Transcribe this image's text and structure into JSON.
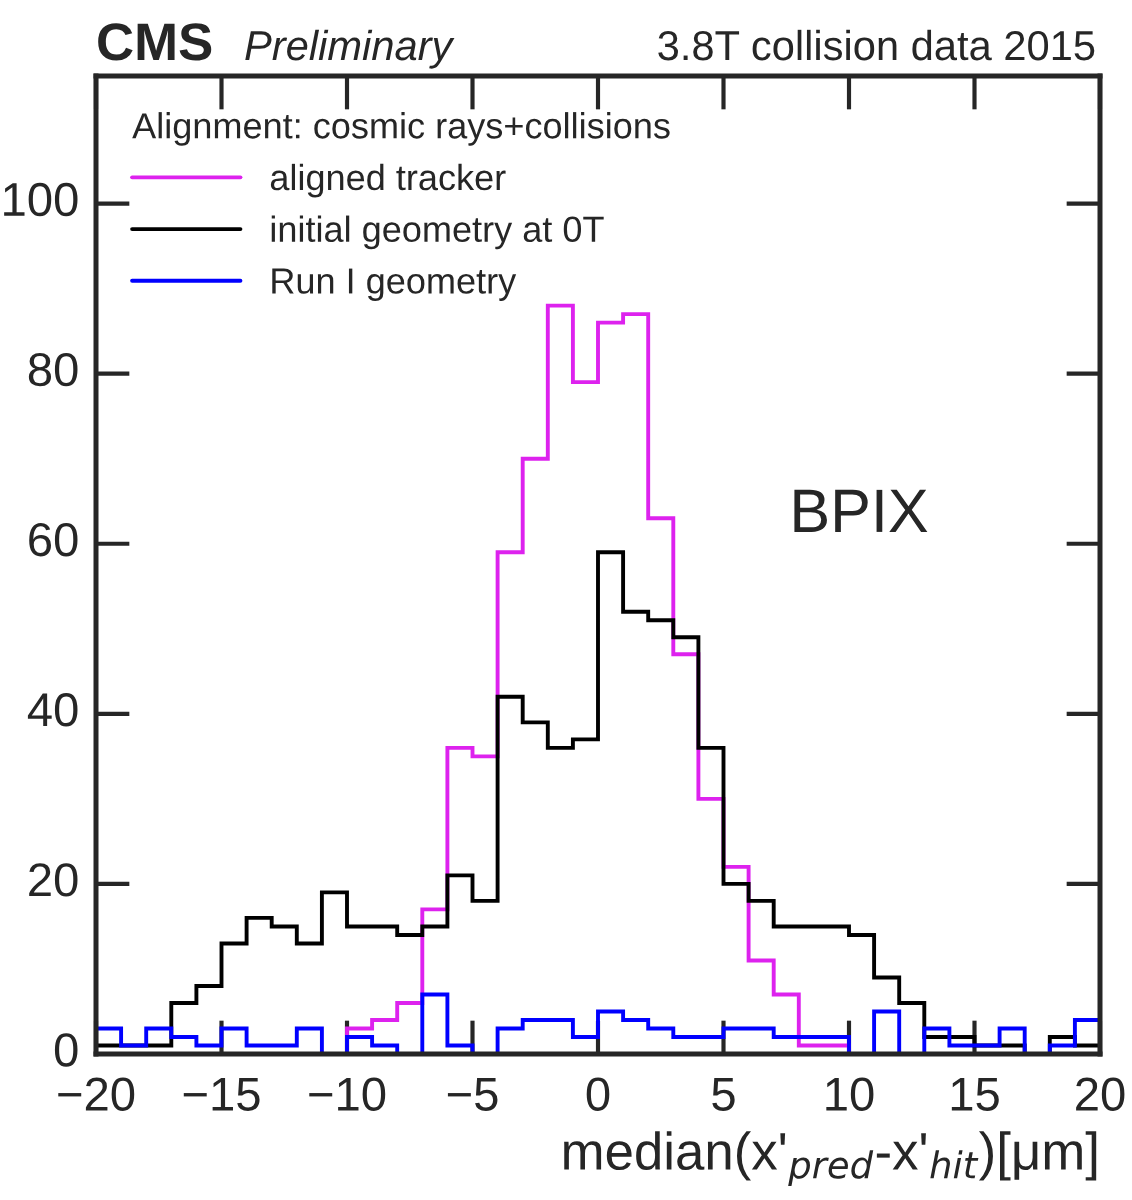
{
  "chart_data": {
    "type": "histogram",
    "title": "CMS",
    "subtitle": "Preliminary",
    "xlabel": "median(x'$_{pred}$-x'$_{hit}$)[μm]",
    "legend_title": "Alignment: cosmic rays+collisions",
    "annotations": [
      "3.8T collision data 2015",
      "BPIX"
    ],
    "bins": [
      -20,
      -19,
      -18,
      -17,
      -16,
      -15,
      -14,
      -13,
      -12,
      -11,
      -10,
      -9,
      -8,
      -7,
      -6,
      -5,
      -4,
      -3,
      -2,
      -1,
      0,
      1,
      2,
      3,
      4,
      5,
      6,
      7,
      8,
      9,
      10,
      11,
      12,
      13,
      14,
      15,
      16,
      17,
      18,
      19,
      20
    ],
    "series": [
      {
        "name": "aligned tracker",
        "color": "#dd22ee",
        "values": [
          0,
          0,
          0,
          0,
          0,
          0,
          0,
          0,
          0,
          0,
          3,
          4,
          6,
          17,
          36,
          35,
          59,
          70,
          88,
          79,
          86,
          87,
          63,
          47,
          30,
          22,
          11,
          7,
          1,
          1,
          0,
          0,
          0,
          0,
          0,
          0,
          0,
          0,
          0,
          0
        ]
      },
      {
        "name": "initial geometry at 0T",
        "color": "#000000",
        "values": [
          1,
          1,
          1,
          6,
          8,
          13,
          16,
          15,
          13,
          19,
          15,
          15,
          14,
          15,
          21,
          18,
          42,
          39,
          36,
          37,
          59,
          52,
          51,
          49,
          36,
          20,
          18,
          15,
          15,
          15,
          14,
          9,
          6,
          2,
          2,
          1,
          1,
          0,
          2,
          1
        ]
      },
      {
        "name": "Run I geometry",
        "color": "#0000ff",
        "values": [
          3,
          1,
          3,
          2,
          1,
          3,
          1,
          1,
          3,
          0,
          2,
          1,
          0,
          7,
          1,
          0,
          3,
          4,
          4,
          2,
          5,
          4,
          3,
          2,
          2,
          3,
          3,
          2,
          2,
          2,
          0,
          5,
          0,
          3,
          1,
          1,
          3,
          0,
          1,
          4
        ]
      }
    ],
    "xlim": [
      -20,
      20
    ],
    "xticks": [
      {
        "value": -20,
        "label": "−20"
      },
      {
        "value": -15,
        "label": "−15"
      },
      {
        "value": -10,
        "label": "−10"
      },
      {
        "value": -5,
        "label": "−5"
      },
      0,
      5,
      10,
      15,
      20
    ],
    "ylim": [
      0,
      115
    ],
    "yticks": [
      0,
      20,
      40,
      60,
      80,
      100
    ],
    "grid": false,
    "legend": "top left"
  }
}
